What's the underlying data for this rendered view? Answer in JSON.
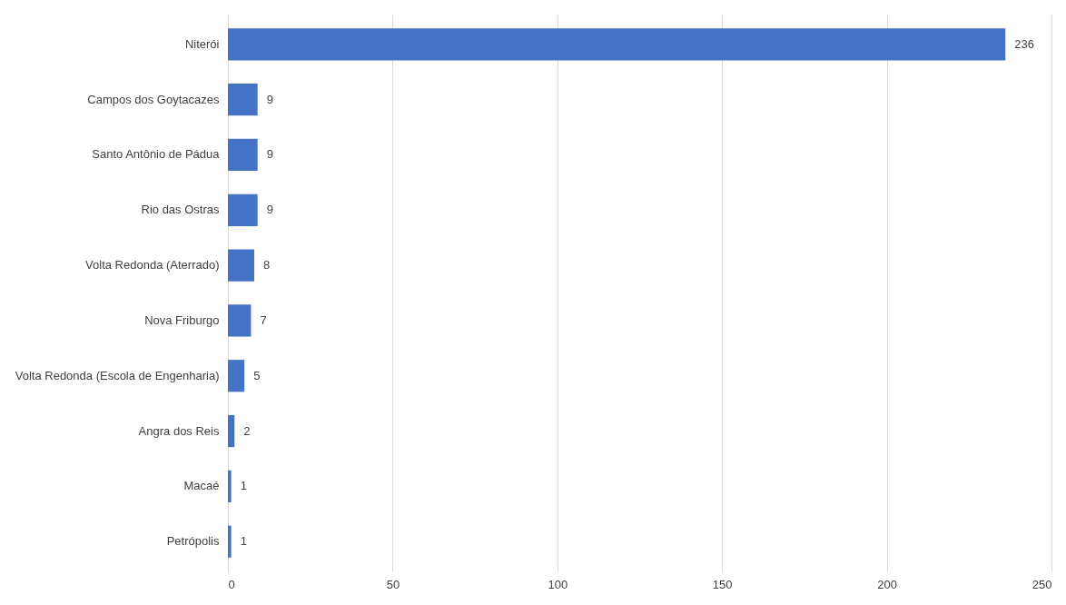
{
  "chart_data": {
    "type": "bar",
    "orientation": "horizontal",
    "categories": [
      "Niterói",
      "Campos dos Goytacazes",
      "Santo Antônio de Pádua",
      "Rio das Ostras",
      "Volta Redonda (Aterrado)",
      "Nova Friburgo",
      "Volta Redonda (Escola de Engenharia)",
      "Angra dos Reis",
      "Macaé",
      "Petrópolis"
    ],
    "values": [
      236,
      9,
      9,
      9,
      8,
      7,
      5,
      2,
      1,
      1
    ],
    "color": "#4472c4",
    "xlim": [
      0,
      250
    ],
    "xticks": [
      0,
      50,
      100,
      150,
      200,
      250
    ],
    "grid": "x",
    "data_labels": true
  }
}
